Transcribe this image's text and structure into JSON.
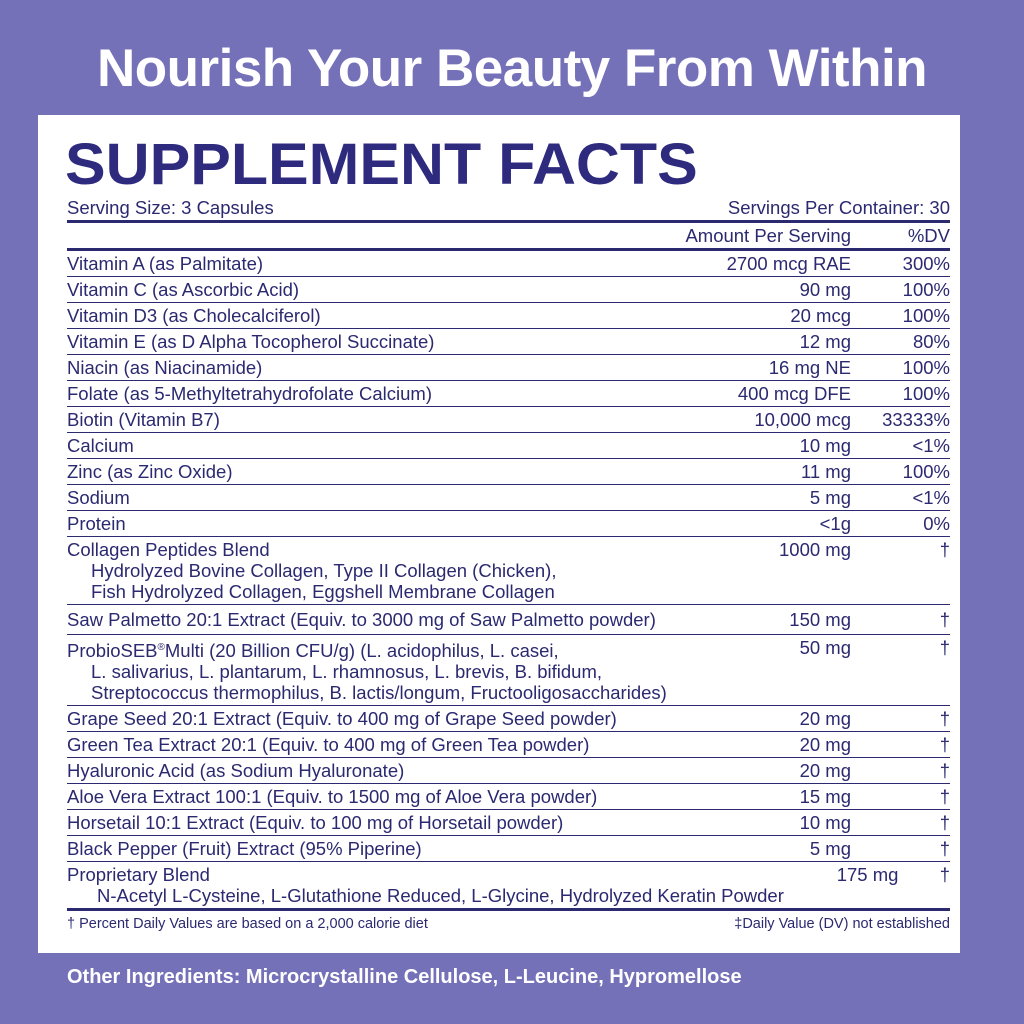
{
  "headline": "Nourish Your Beauty From Within",
  "title": "SUPPLEMENT FACTS",
  "serving_size": "Serving Size: 3 Capsules",
  "servings_per_container": "Servings Per Container: 30",
  "col_amount": "Amount Per Serving",
  "col_dv": "%DV",
  "rows": [
    {
      "name": "Vitamin A (as Palmitate)",
      "amount": "2700 mcg RAE",
      "dv": "300%"
    },
    {
      "name": "Vitamin C (as Ascorbic Acid)",
      "amount": "90 mg",
      "dv": "100%"
    },
    {
      "name": "Vitamin D3 (as Cholecalciferol)",
      "amount": "20 mcg",
      "dv": "100%"
    },
    {
      "name": "Vitamin E (as D Alpha Tocopherol Succinate)",
      "amount": "12 mg",
      "dv": "80%"
    },
    {
      "name": "Niacin (as Niacinamide)",
      "amount": "16 mg NE",
      "dv": "100%"
    },
    {
      "name": "Folate (as 5-Methyltetrahydrofolate Calcium)",
      "amount": "400 mcg DFE",
      "dv": "100%"
    },
    {
      "name": "Biotin (Vitamin B7)",
      "amount": "10,000 mcg",
      "dv": "33333%"
    },
    {
      "name": "Calcium",
      "amount": "10 mg",
      "dv": "<1%"
    },
    {
      "name": "Zinc (as Zinc Oxide)",
      "amount": "11 mg",
      "dv": "100%"
    },
    {
      "name": "Sodium",
      "amount": "5 mg",
      "dv": "<1%"
    },
    {
      "name": "Protein",
      "amount": "<1g",
      "dv": "0%"
    }
  ],
  "collagen": {
    "name": "Collagen Peptides Blend",
    "amount": "1000 mg",
    "dv": "†",
    "sub1": "Hydrolyzed Bovine Collagen, Type II Collagen (Chicken),",
    "sub2": "Fish Hydrolyzed Collagen, Eggshell Membrane Collagen"
  },
  "saw": {
    "name": "Saw Palmetto 20:1 Extract (Equiv. to 3000 mg of Saw Palmetto powder)",
    "amount": "150 mg",
    "dv": "†"
  },
  "probio": {
    "name_a": "ProbioSEB",
    "reg": "®",
    "name_b": "Multi (20 Billion CFU/g) (L. acidophilus, L. casei,",
    "amount": "50 mg",
    "dv": "†",
    "sub1": "L. salivarius, L. plantarum, L. rhamnosus, L. brevis, B. bifidum,",
    "sub2": "Streptococcus thermophilus, B. lactis/longum, Fructooligosaccharides)"
  },
  "rows2": [
    {
      "name": "Grape Seed 20:1 Extract (Equiv. to 400 mg of Grape Seed powder)",
      "amount": "20 mg",
      "dv": "†"
    },
    {
      "name": "Green Tea Extract 20:1 (Equiv. to 400 mg of Green Tea powder)",
      "amount": "20 mg",
      "dv": "†"
    },
    {
      "name": "Hyaluronic Acid (as Sodium Hyaluronate)",
      "amount": "20 mg",
      "dv": "†"
    },
    {
      "name": "Aloe Vera Extract 100:1 (Equiv. to 1500 mg of Aloe Vera powder)",
      "amount": "15 mg",
      "dv": "†"
    },
    {
      "name": "Horsetail 10:1 Extract (Equiv. to 100 mg of Horsetail powder)",
      "amount": "10 mg",
      "dv": "†"
    },
    {
      "name": "Black Pepper (Fruit) Extract (95% Piperine)",
      "amount": "5 mg",
      "dv": "†"
    }
  ],
  "proprietary": {
    "name": "Proprietary Blend",
    "amount": "175 mg",
    "dv": "†",
    "sub": "N-Acetyl L-Cysteine, L-Glutathione Reduced, L-Glycine, Hydrolyzed Keratin Powder"
  },
  "footnote_left": "† Percent Daily Values are based on a 2,000 calorie diet",
  "footnote_right": "‡Daily Value (DV) not established",
  "other_ingredients": "Other Ingredients: Microcrystalline Cellulose, L-Leucine, Hypromellose",
  "colors": {
    "background": "#7571b9",
    "text": "#2b2970",
    "panel": "#ffffff"
  }
}
